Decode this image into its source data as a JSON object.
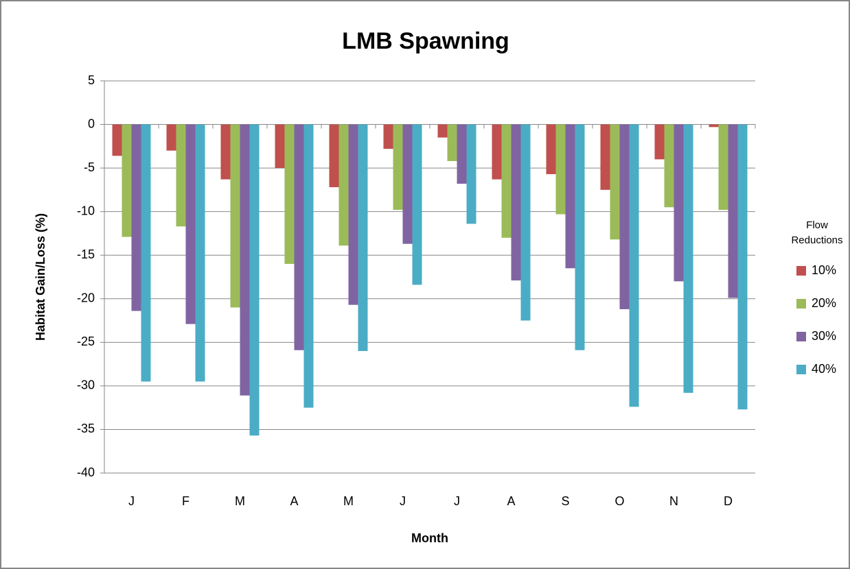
{
  "chart_data": {
    "type": "bar",
    "title": "LMB Spawning",
    "x_label": "Month",
    "y_label": "Habitat Gain/Loss (%)",
    "legend_title": "Flow Reductions",
    "legend_position": "right",
    "categories": [
      "J",
      "F",
      "M",
      "A",
      "M",
      "J",
      "J",
      "A",
      "S",
      "O",
      "N",
      "D"
    ],
    "series": [
      {
        "name": "10%",
        "color": "#c0504d",
        "values": [
          -3.6,
          -3.0,
          -6.3,
          -5.0,
          -7.2,
          -2.8,
          -1.5,
          -6.3,
          -5.7,
          -7.5,
          -4.0,
          -0.3
        ]
      },
      {
        "name": "20%",
        "color": "#9bbb59",
        "values": [
          -12.9,
          -11.7,
          -21.0,
          -16.0,
          -13.9,
          -9.8,
          -4.2,
          -13.0,
          -10.3,
          -13.2,
          -9.5,
          -9.8
        ]
      },
      {
        "name": "30%",
        "color": "#8064a2",
        "values": [
          -21.4,
          -22.9,
          -31.1,
          -25.9,
          -20.7,
          -13.7,
          -6.8,
          -17.9,
          -16.5,
          -21.2,
          -18.0,
          -19.9
        ]
      },
      {
        "name": "40%",
        "color": "#4bacc6",
        "values": [
          -29.5,
          -29.5,
          -35.7,
          -32.5,
          -26.0,
          -18.4,
          -11.4,
          -22.5,
          -25.9,
          -32.4,
          -30.8,
          -32.7
        ]
      }
    ],
    "ylim": [
      -40,
      5
    ],
    "yticks": [
      -40,
      -35,
      -30,
      -25,
      -20,
      -15,
      -10,
      -5,
      0,
      5
    ],
    "grid": true
  }
}
